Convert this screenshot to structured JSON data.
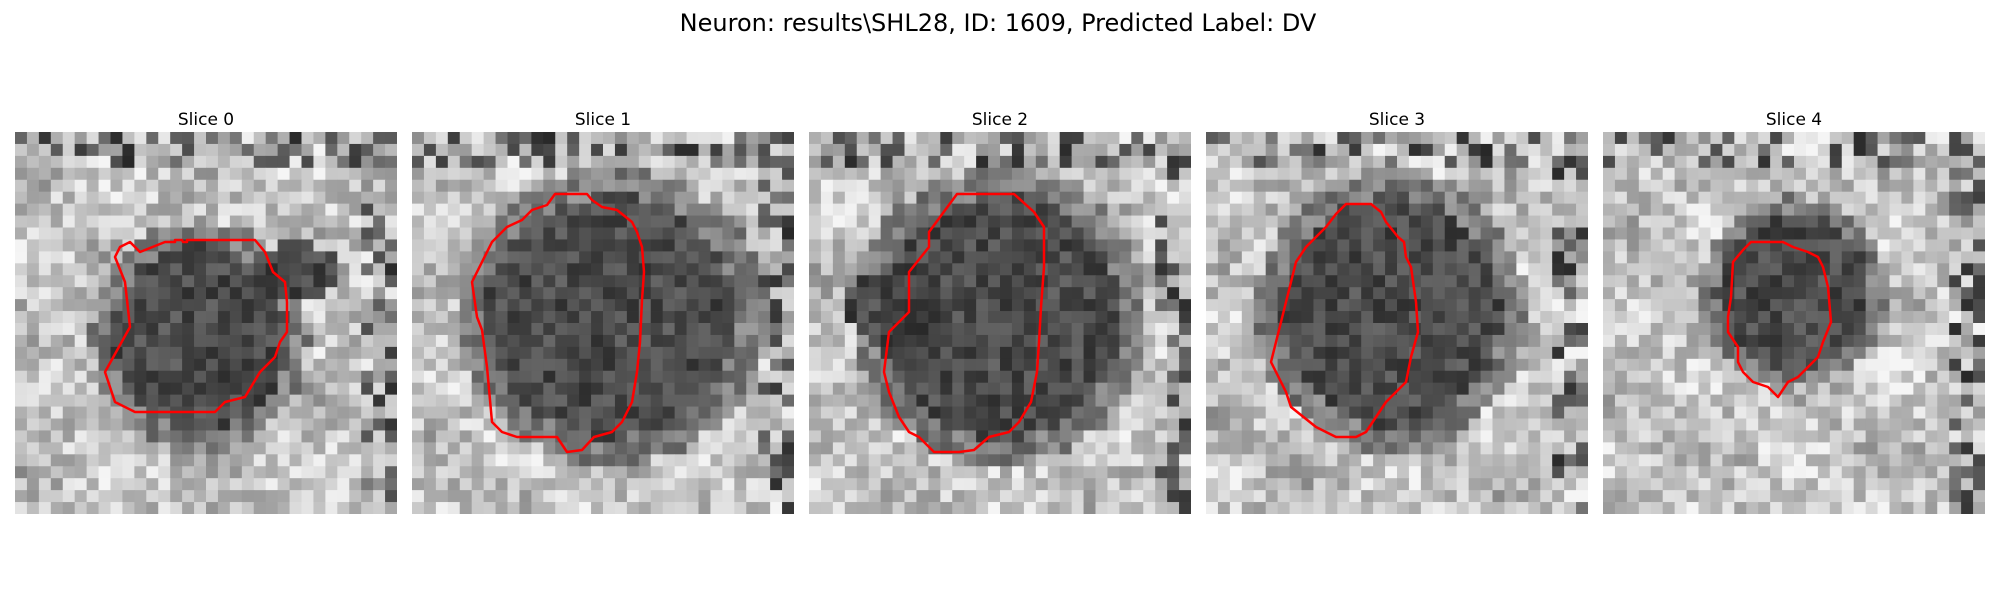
{
  "figure": {
    "title": "Neuron: results\\SHL28, ID: 1609, Predicted Label: DV"
  },
  "panels": [
    {
      "label": "Slice 0"
    },
    {
      "label": "Slice 1"
    },
    {
      "label": "Slice 2"
    },
    {
      "label": "Slice 3"
    },
    {
      "label": "Slice 4"
    }
  ],
  "colors": {
    "contour": "#ff0000",
    "background": "#ffffff"
  }
}
